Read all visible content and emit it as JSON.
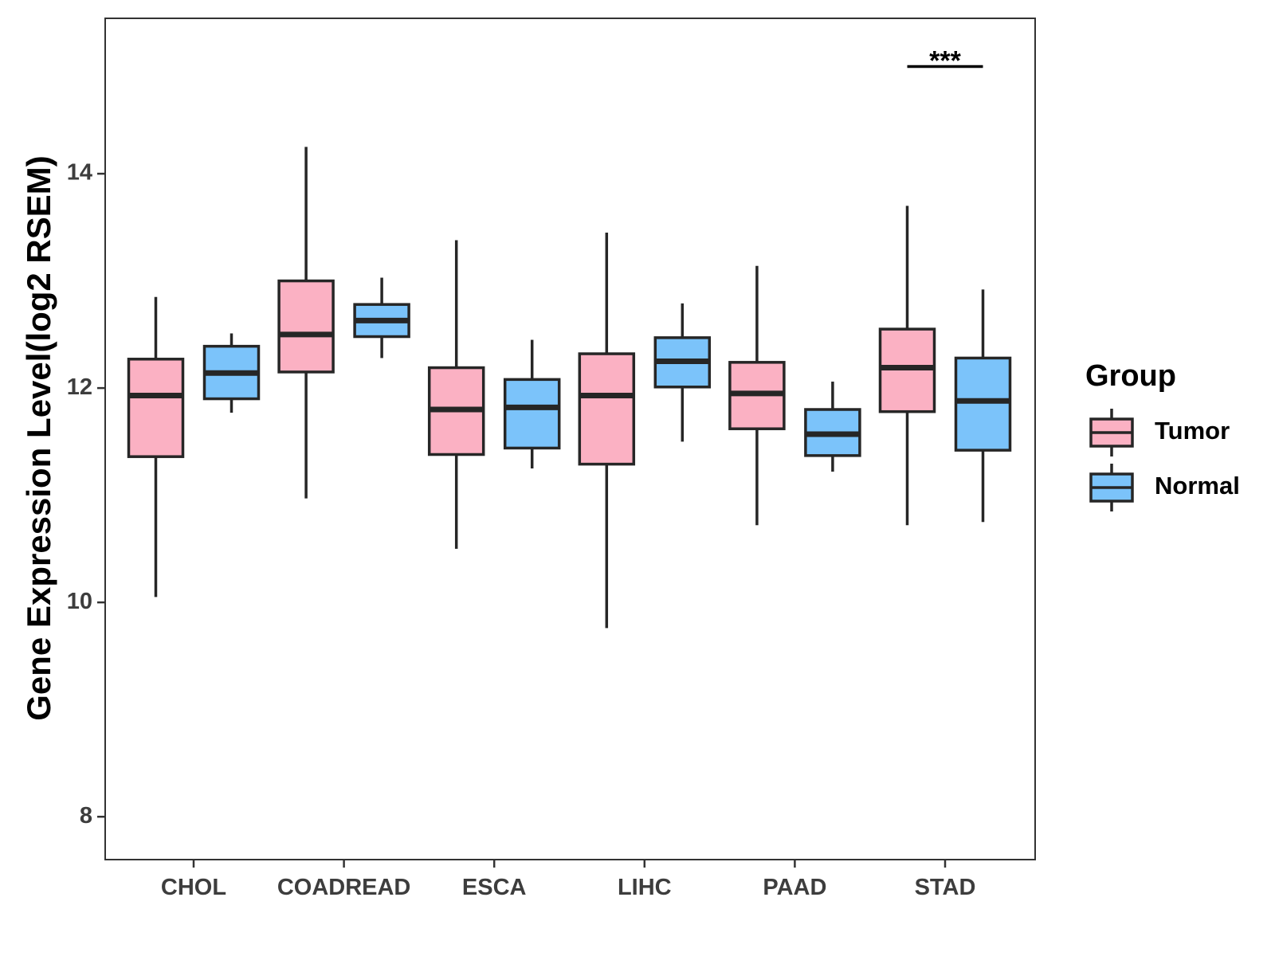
{
  "chart_data": {
    "type": "boxplot",
    "title": "",
    "xlabel": "",
    "ylabel": "Gene Expression Level(log2 RSEM)",
    "ylim": [
      7.6,
      15.45
    ],
    "yticks": [
      8,
      10,
      12,
      14
    ],
    "categories": [
      "CHOL",
      "COADREAD",
      "ESCA",
      "LIHC",
      "PAAD",
      "STAD"
    ],
    "legend": {
      "title": "Group",
      "position": "right"
    },
    "series": [
      {
        "name": "Tumor",
        "color": "#FBB1C3",
        "boxes": [
          {
            "lower": 10.05,
            "q1": 11.36,
            "median": 11.93,
            "q3": 12.27,
            "upper": 12.85
          },
          {
            "lower": 10.97,
            "q1": 12.15,
            "median": 12.5,
            "q3": 13.0,
            "upper": 14.25
          },
          {
            "lower": 10.5,
            "q1": 11.38,
            "median": 11.8,
            "q3": 12.19,
            "upper": 13.38
          },
          {
            "lower": 9.76,
            "q1": 11.29,
            "median": 11.93,
            "q3": 12.32,
            "upper": 13.45
          },
          {
            "lower": 10.72,
            "q1": 11.62,
            "median": 11.95,
            "q3": 12.24,
            "upper": 13.14
          },
          {
            "lower": 10.72,
            "q1": 11.78,
            "median": 12.19,
            "q3": 12.55,
            "upper": 13.7
          }
        ]
      },
      {
        "name": "Normal",
        "color": "#7BC3FA",
        "boxes": [
          {
            "lower": 11.77,
            "q1": 11.9,
            "median": 12.14,
            "q3": 12.39,
            "upper": 12.51
          },
          {
            "lower": 12.28,
            "q1": 12.48,
            "median": 12.63,
            "q3": 12.78,
            "upper": 13.03
          },
          {
            "lower": 11.25,
            "q1": 11.44,
            "median": 11.82,
            "q3": 12.08,
            "upper": 12.45
          },
          {
            "lower": 11.5,
            "q1": 12.01,
            "median": 12.25,
            "q3": 12.47,
            "upper": 12.79
          },
          {
            "lower": 11.22,
            "q1": 11.37,
            "median": 11.57,
            "q3": 11.8,
            "upper": 12.06
          },
          {
            "lower": 10.75,
            "q1": 11.42,
            "median": 11.88,
            "q3": 12.28,
            "upper": 12.92
          }
        ]
      }
    ],
    "annotations": [
      {
        "category": "STAD",
        "y": 15.0,
        "text": "***"
      }
    ]
  }
}
